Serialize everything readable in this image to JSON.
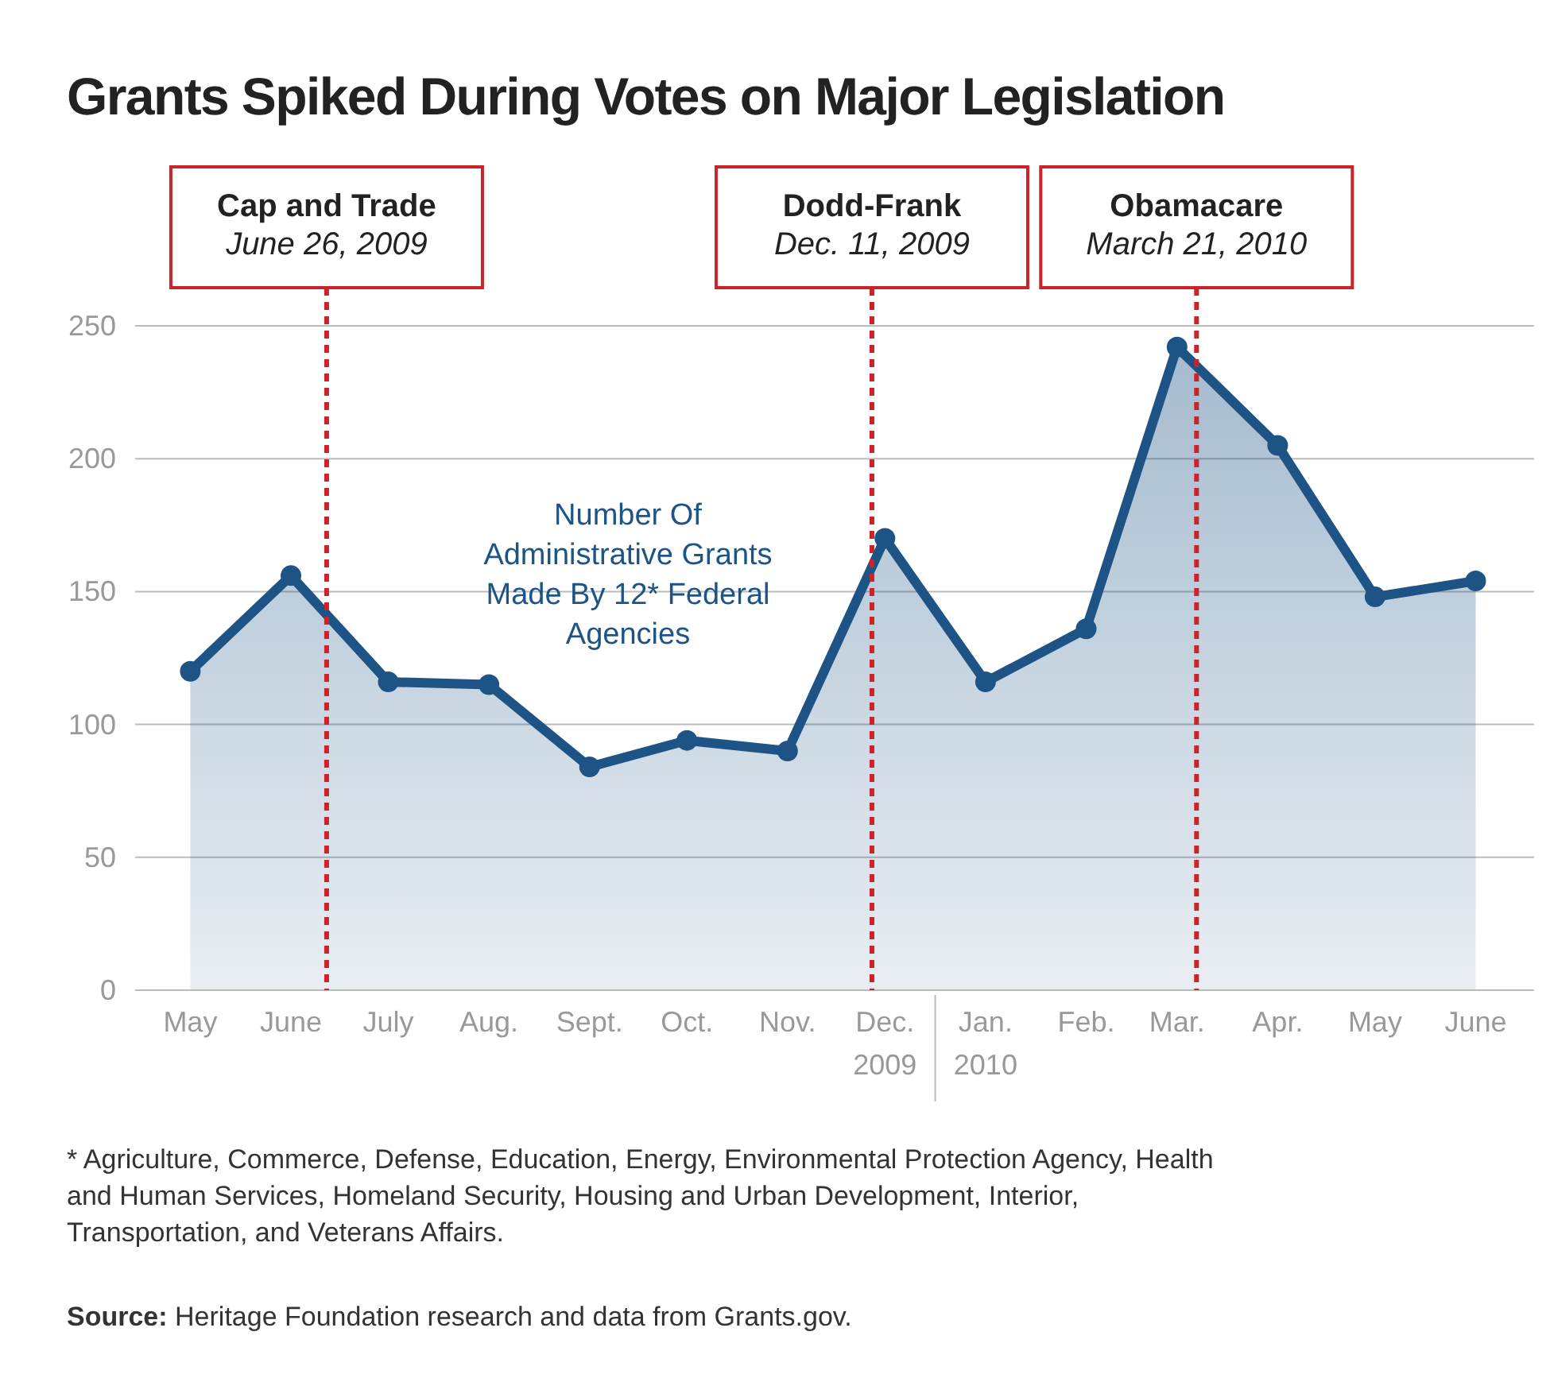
{
  "chart_data": {
    "type": "area",
    "title": "Grants Spiked During Votes on Major Legislation",
    "x": [
      "2009-05-15",
      "2009-06-15",
      "2009-07-15",
      "2009-08-15",
      "2009-09-15",
      "2009-10-15",
      "2009-11-15",
      "2009-12-15",
      "2010-01-15",
      "2010-02-15",
      "2010-03-15",
      "2010-04-15",
      "2010-05-15",
      "2010-06-15"
    ],
    "series": [
      {
        "name": "Number Of Administrative Grants Made By 12* Federal Agencies",
        "color": "#1d5485",
        "values": [
          120,
          156,
          116,
          115,
          84,
          94,
          90,
          170,
          116,
          136,
          242,
          205,
          148,
          154
        ]
      }
    ],
    "xlim": [
      "2009-04-28",
      "2010-07-03"
    ],
    "xticks": [
      {
        "value": "2009-05-15",
        "label": "May"
      },
      {
        "value": "2009-06-15",
        "label": "June"
      },
      {
        "value": "2009-07-15",
        "label": "July"
      },
      {
        "value": "2009-08-15",
        "label": "Aug."
      },
      {
        "value": "2009-09-15",
        "label": "Sept."
      },
      {
        "value": "2009-10-15",
        "label": "Oct."
      },
      {
        "value": "2009-11-15",
        "label": "Nov."
      },
      {
        "value": "2009-12-15",
        "label": "Dec.\n2009"
      },
      {
        "value": "2010-01-15",
        "label": "Jan.\n2010"
      },
      {
        "value": "2010-02-15",
        "label": "Feb."
      },
      {
        "value": "2010-03-15",
        "label": "Mar."
      },
      {
        "value": "2010-04-15",
        "label": "Apr."
      },
      {
        "value": "2010-05-15",
        "label": "May"
      },
      {
        "value": "2010-06-15",
        "label": "June"
      }
    ],
    "ylim": [
      0,
      250
    ],
    "yticks": [
      0,
      50,
      100,
      150,
      200,
      250
    ],
    "grid": "y",
    "marker": "circle",
    "legend": false,
    "ref_lines": [
      {
        "axis": "x",
        "value": "2009-06-26",
        "label": "Cap and Trade\nJune 26, 2009",
        "color": "#cc2229",
        "line_style": "dashed"
      },
      {
        "axis": "x",
        "value": "2009-12-11",
        "label": "Dodd-Frank\nDec. 11, 2009",
        "color": "#cc2229",
        "line_style": "dashed"
      },
      {
        "axis": "x",
        "value": "2010-03-21",
        "label": "Obamacare\nMarch 21, 2010",
        "color": "#cc2229",
        "line_style": "dashed"
      }
    ],
    "annotations": [
      "* Agriculture, Commerce, Defense, Education, Energy, Environmental Protection Agency, Health and Human Services, Homeland Security, Housing and Urban Development, Interior, Transportation, and Veterans Affairs.",
      "Source: Heritage Foundation research and data from Grants.gov."
    ]
  }
}
